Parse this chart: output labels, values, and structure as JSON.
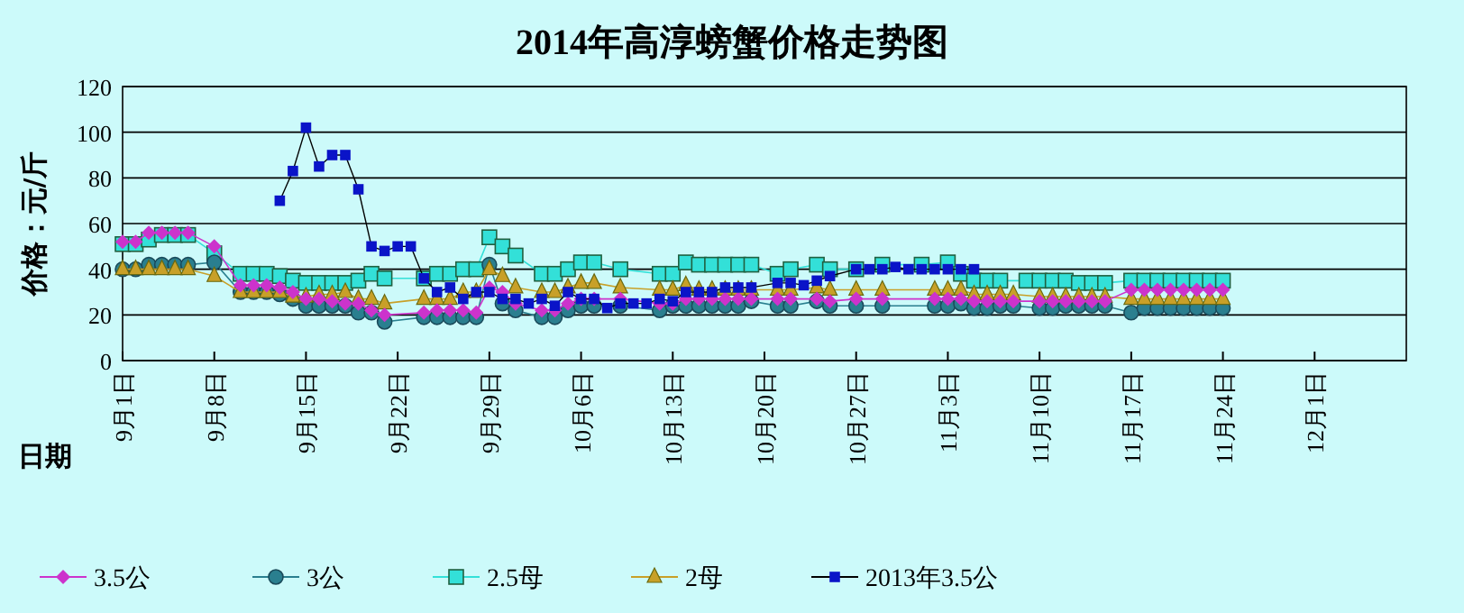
{
  "chart_data": {
    "type": "line",
    "title": "2014年高淳螃蟹价格走势图",
    "xlabel": "日期",
    "ylabel": "价格：元/斤",
    "xlim": [
      "2014-09-01",
      "2014-12-08"
    ],
    "xticks": [
      {
        "value": "2014-09-01",
        "label": "9月1日"
      },
      {
        "value": "2014-09-08",
        "label": "9月8日"
      },
      {
        "value": "2014-09-15",
        "label": "9月15日"
      },
      {
        "value": "2014-09-22",
        "label": "9月22日"
      },
      {
        "value": "2014-09-29",
        "label": "9月29日"
      },
      {
        "value": "2014-10-06",
        "label": "10月6日"
      },
      {
        "value": "2014-10-13",
        "label": "10月13日"
      },
      {
        "value": "2014-10-20",
        "label": "10月20日"
      },
      {
        "value": "2014-10-27",
        "label": "10月27日"
      },
      {
        "value": "2014-11-03",
        "label": "11月3日"
      },
      {
        "value": "2014-11-10",
        "label": "11月10日"
      },
      {
        "value": "2014-11-17",
        "label": "11月17日"
      },
      {
        "value": "2014-11-24",
        "label": "11月24日"
      },
      {
        "value": "2014-12-01",
        "label": "12月1日"
      }
    ],
    "ylim": [
      0,
      120
    ],
    "yticks": [
      0,
      20,
      40,
      60,
      80,
      100,
      120
    ],
    "grid": "y",
    "legend": "bottom",
    "line_style": "solid",
    "series": [
      {
        "name": "3.5公",
        "color": "#cc33cc",
        "marker": "diamond",
        "x": [
          "2014-09-01",
          "2014-09-02",
          "2014-09-03",
          "2014-09-04",
          "2014-09-05",
          "2014-09-06",
          "2014-09-08",
          "2014-09-10",
          "2014-09-11",
          "2014-09-12",
          "2014-09-13",
          "2014-09-14",
          "2014-09-15",
          "2014-09-16",
          "2014-09-17",
          "2014-09-18",
          "2014-09-19",
          "2014-09-20",
          "2014-09-21",
          "2014-09-24",
          "2014-09-25",
          "2014-09-26",
          "2014-09-27",
          "2014-09-28",
          "2014-09-29",
          "2014-09-30",
          "2014-10-01",
          "2014-10-03",
          "2014-10-04",
          "2014-10-05",
          "2014-10-06",
          "2014-10-07",
          "2014-10-09",
          "2014-10-12",
          "2014-10-13",
          "2014-10-14",
          "2014-10-15",
          "2014-10-16",
          "2014-10-17",
          "2014-10-18",
          "2014-10-19",
          "2014-10-21",
          "2014-10-22",
          "2014-10-24",
          "2014-10-25",
          "2014-10-27",
          "2014-10-29",
          "2014-11-02",
          "2014-11-03",
          "2014-11-04",
          "2014-11-05",
          "2014-11-06",
          "2014-11-07",
          "2014-11-08",
          "2014-11-10",
          "2014-11-11",
          "2014-11-12",
          "2014-11-13",
          "2014-11-14",
          "2014-11-15",
          "2014-11-17",
          "2014-11-18",
          "2014-11-19",
          "2014-11-20",
          "2014-11-21",
          "2014-11-22",
          "2014-11-23",
          "2014-11-24"
        ],
        "values": [
          52,
          52,
          56,
          56,
          56,
          56,
          50,
          33,
          33,
          33,
          32,
          30,
          27,
          27,
          26,
          25,
          25,
          22,
          20,
          21,
          22,
          22,
          22,
          21,
          32,
          30,
          25,
          22,
          22,
          25,
          27,
          27,
          27,
          25,
          25,
          27,
          27,
          27,
          27,
          27,
          27,
          27,
          27,
          27,
          26,
          27,
          27,
          27,
          27,
          27,
          26,
          26,
          26,
          26,
          26,
          26,
          26,
          26,
          26,
          26,
          31,
          31,
          31,
          31,
          31,
          31,
          31,
          31
        ]
      },
      {
        "name": "3公",
        "color": "#2a7f8f",
        "marker": "circle",
        "x": [
          "2014-09-01",
          "2014-09-02",
          "2014-09-03",
          "2014-09-04",
          "2014-09-05",
          "2014-09-06",
          "2014-09-08",
          "2014-09-10",
          "2014-09-11",
          "2014-09-12",
          "2014-09-13",
          "2014-09-14",
          "2014-09-15",
          "2014-09-16",
          "2014-09-17",
          "2014-09-18",
          "2014-09-19",
          "2014-09-20",
          "2014-09-21",
          "2014-09-24",
          "2014-09-25",
          "2014-09-26",
          "2014-09-27",
          "2014-09-28",
          "2014-09-29",
          "2014-09-30",
          "2014-10-01",
          "2014-10-03",
          "2014-10-04",
          "2014-10-05",
          "2014-10-06",
          "2014-10-07",
          "2014-10-09",
          "2014-10-12",
          "2014-10-13",
          "2014-10-14",
          "2014-10-15",
          "2014-10-16",
          "2014-10-17",
          "2014-10-18",
          "2014-10-19",
          "2014-10-21",
          "2014-10-22",
          "2014-10-24",
          "2014-10-25",
          "2014-10-27",
          "2014-10-29",
          "2014-11-02",
          "2014-11-03",
          "2014-11-04",
          "2014-11-05",
          "2014-11-06",
          "2014-11-07",
          "2014-11-08",
          "2014-11-10",
          "2014-11-11",
          "2014-11-12",
          "2014-11-13",
          "2014-11-14",
          "2014-11-15",
          "2014-11-17",
          "2014-11-18",
          "2014-11-19",
          "2014-11-20",
          "2014-11-21",
          "2014-11-22",
          "2014-11-23",
          "2014-11-24"
        ],
        "values": [
          40,
          40,
          42,
          42,
          42,
          42,
          43,
          30,
          30,
          30,
          29,
          27,
          24,
          24,
          24,
          24,
          21,
          21,
          17,
          19,
          19,
          19,
          19,
          19,
          42,
          25,
          22,
          19,
          19,
          22,
          24,
          24,
          24,
          22,
          24,
          24,
          24,
          24,
          24,
          24,
          26,
          24,
          24,
          26,
          24,
          24,
          24,
          24,
          24,
          25,
          23,
          23,
          24,
          24,
          23,
          23,
          24,
          24,
          24,
          24,
          21,
          23,
          23,
          23,
          23,
          23,
          23,
          23
        ]
      },
      {
        "name": "2.5母",
        "color": "#33e0d8",
        "marker": "square",
        "x": [
          "2014-09-01",
          "2014-09-02",
          "2014-09-03",
          "2014-09-04",
          "2014-09-05",
          "2014-09-06",
          "2014-09-08",
          "2014-09-10",
          "2014-09-11",
          "2014-09-12",
          "2014-09-13",
          "2014-09-14",
          "2014-09-15",
          "2014-09-16",
          "2014-09-17",
          "2014-09-18",
          "2014-09-19",
          "2014-09-20",
          "2014-09-21",
          "2014-09-24",
          "2014-09-25",
          "2014-09-26",
          "2014-09-27",
          "2014-09-28",
          "2014-09-29",
          "2014-09-30",
          "2014-10-01",
          "2014-10-03",
          "2014-10-04",
          "2014-10-05",
          "2014-10-06",
          "2014-10-07",
          "2014-10-09",
          "2014-10-12",
          "2014-10-13",
          "2014-10-14",
          "2014-10-15",
          "2014-10-16",
          "2014-10-17",
          "2014-10-18",
          "2014-10-19",
          "2014-10-21",
          "2014-10-22",
          "2014-10-24",
          "2014-10-25",
          "2014-10-27",
          "2014-10-29",
          "2014-11-01",
          "2014-11-03",
          "2014-11-04",
          "2014-11-05",
          "2014-11-06",
          "2014-11-07",
          "2014-11-09",
          "2014-11-10",
          "2014-11-11",
          "2014-11-12",
          "2014-11-13",
          "2014-11-14",
          "2014-11-15",
          "2014-11-17",
          "2014-11-18",
          "2014-11-19",
          "2014-11-20",
          "2014-11-21",
          "2014-11-22",
          "2014-11-23",
          "2014-11-24"
        ],
        "values": [
          51,
          51,
          53,
          55,
          55,
          55,
          47,
          38,
          38,
          38,
          37,
          35,
          34,
          34,
          34,
          34,
          35,
          38,
          36,
          36,
          38,
          38,
          40,
          40,
          54,
          50,
          46,
          38,
          38,
          40,
          43,
          43,
          40,
          38,
          38,
          43,
          42,
          42,
          42,
          42,
          42,
          38,
          40,
          42,
          40,
          40,
          42,
          42,
          43,
          38,
          35,
          35,
          35,
          35,
          35,
          35,
          35,
          34,
          34,
          34,
          35,
          35,
          35,
          35,
          35,
          35,
          35,
          35
        ]
      },
      {
        "name": "2母",
        "color": "#c8a028",
        "marker": "triangle",
        "x": [
          "2014-09-01",
          "2014-09-02",
          "2014-09-03",
          "2014-09-04",
          "2014-09-05",
          "2014-09-06",
          "2014-09-08",
          "2014-09-10",
          "2014-09-11",
          "2014-09-12",
          "2014-09-13",
          "2014-09-14",
          "2014-09-15",
          "2014-09-16",
          "2014-09-17",
          "2014-09-18",
          "2014-09-19",
          "2014-09-20",
          "2014-09-21",
          "2014-09-24",
          "2014-09-25",
          "2014-09-26",
          "2014-09-27",
          "2014-09-28",
          "2014-09-29",
          "2014-09-30",
          "2014-10-01",
          "2014-10-03",
          "2014-10-04",
          "2014-10-05",
          "2014-10-06",
          "2014-10-07",
          "2014-10-09",
          "2014-10-12",
          "2014-10-13",
          "2014-10-14",
          "2014-10-15",
          "2014-10-16",
          "2014-10-17",
          "2014-10-18",
          "2014-10-19",
          "2014-10-21",
          "2014-10-22",
          "2014-10-24",
          "2014-10-25",
          "2014-10-27",
          "2014-10-29",
          "2014-11-02",
          "2014-11-03",
          "2014-11-04",
          "2014-11-05",
          "2014-11-06",
          "2014-11-07",
          "2014-11-08",
          "2014-11-10",
          "2014-11-11",
          "2014-11-12",
          "2014-11-13",
          "2014-11-14",
          "2014-11-15",
          "2014-11-17",
          "2014-11-18",
          "2014-11-19",
          "2014-11-20",
          "2014-11-21",
          "2014-11-22",
          "2014-11-23",
          "2014-11-24"
        ],
        "values": [
          40,
          40,
          40,
          40,
          40,
          40,
          37,
          30,
          30,
          30,
          30,
          28,
          28,
          29,
          29,
          30,
          27,
          27,
          25,
          27,
          27,
          27,
          30,
          30,
          40,
          37,
          32,
          30,
          30,
          32,
          34,
          34,
          32,
          31,
          31,
          33,
          31,
          31,
          31,
          31,
          31,
          31,
          31,
          32,
          31,
          31,
          31,
          31,
          31,
          31,
          29,
          29,
          29,
          29,
          28,
          28,
          28,
          28,
          28,
          28,
          27,
          27,
          27,
          27,
          27,
          27,
          27,
          27
        ]
      },
      {
        "name": "2013年3.5公",
        "color": "#0a14c8",
        "marker": "square",
        "x": [
          "2014-09-13",
          "2014-09-14",
          "2014-09-15",
          "2014-09-16",
          "2014-09-17",
          "2014-09-18",
          "2014-09-19",
          "2014-09-20",
          "2014-09-21",
          "2014-09-22",
          "2014-09-23",
          "2014-09-24",
          "2014-09-25",
          "2014-09-26",
          "2014-09-27",
          "2014-09-28",
          "2014-09-29",
          "2014-09-30",
          "2014-10-01",
          "2014-10-02",
          "2014-10-03",
          "2014-10-04",
          "2014-10-05",
          "2014-10-06",
          "2014-10-07",
          "2014-10-08",
          "2014-10-09",
          "2014-10-10",
          "2014-10-11",
          "2014-10-12",
          "2014-10-13",
          "2014-10-14",
          "2014-10-15",
          "2014-10-16",
          "2014-10-17",
          "2014-10-18",
          "2014-10-19",
          "2014-10-21",
          "2014-10-22",
          "2014-10-23",
          "2014-10-24",
          "2014-10-25",
          "2014-10-27",
          "2014-10-28",
          "2014-10-29",
          "2014-10-30",
          "2014-10-31",
          "2014-11-01",
          "2014-11-02",
          "2014-11-03",
          "2014-11-04",
          "2014-11-05"
        ],
        "values": [
          70,
          83,
          102,
          85,
          90,
          90,
          75,
          50,
          48,
          50,
          50,
          36,
          30,
          32,
          27,
          30,
          30,
          27,
          27,
          25,
          27,
          24,
          30,
          27,
          27,
          23,
          25,
          25,
          25,
          27,
          26,
          30,
          30,
          30,
          32,
          32,
          32,
          34,
          34,
          33,
          35,
          37,
          40,
          40,
          40,
          41,
          40,
          40,
          40,
          40,
          40,
          40
        ]
      }
    ]
  }
}
